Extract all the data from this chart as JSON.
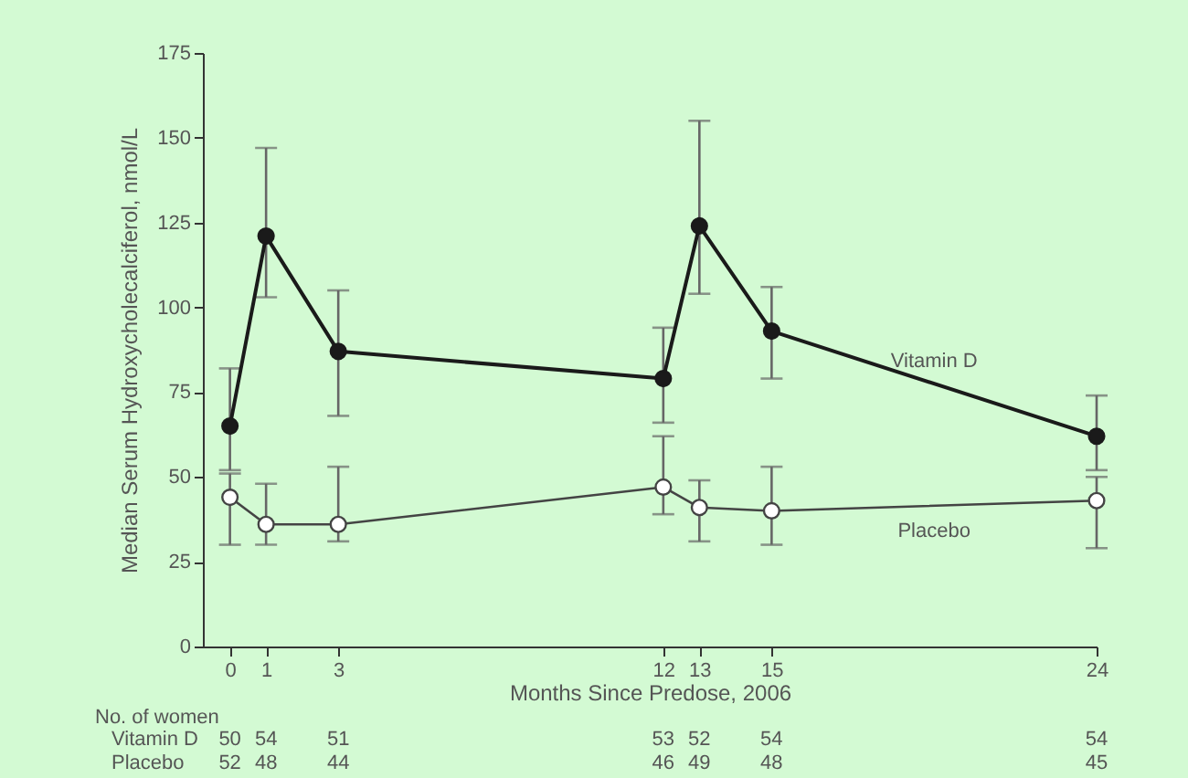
{
  "chart_data": {
    "type": "line",
    "xlabel": "Months Since Predose, 2006",
    "ylabel": "Median Serum Hydroxycholecalciferol, nmol/L",
    "x": [
      0,
      1,
      3,
      12,
      13,
      15,
      24
    ],
    "series": [
      {
        "name": "Vitamin D",
        "color": "#1a1a1a",
        "values": [
          65,
          121,
          87,
          79,
          124,
          93,
          62
        ],
        "errors": [
          [
            52,
            82
          ],
          [
            103,
            147
          ],
          [
            68,
            105
          ],
          [
            66,
            94
          ],
          [
            104,
            155
          ],
          [
            79,
            106
          ],
          [
            52,
            74
          ]
        ]
      },
      {
        "name": "Placebo",
        "color": "#ffffff",
        "values": [
          44,
          36,
          36,
          47,
          41,
          40,
          43
        ],
        "errors": [
          [
            30,
            51
          ],
          [
            30,
            48
          ],
          [
            31,
            53
          ],
          [
            39,
            62
          ],
          [
            31,
            49
          ],
          [
            30,
            53
          ],
          [
            29,
            50
          ]
        ]
      }
    ],
    "xlim": [
      -0.75,
      24
    ],
    "xticks": [
      0,
      1,
      3,
      12,
      13,
      15,
      24
    ],
    "ylim": [
      0,
      175
    ],
    "yticks": [
      0,
      25,
      50,
      75,
      100,
      125,
      150,
      175
    ],
    "grid": false,
    "marker": "circle",
    "line_style": "solid",
    "annotations": [
      "No. of women",
      "Vitamin D",
      "Placebo",
      "50",
      "54",
      "51",
      "53",
      "52",
      "54",
      "54",
      "52",
      "48",
      "44",
      "46",
      "49",
      "48",
      "45"
    ]
  }
}
